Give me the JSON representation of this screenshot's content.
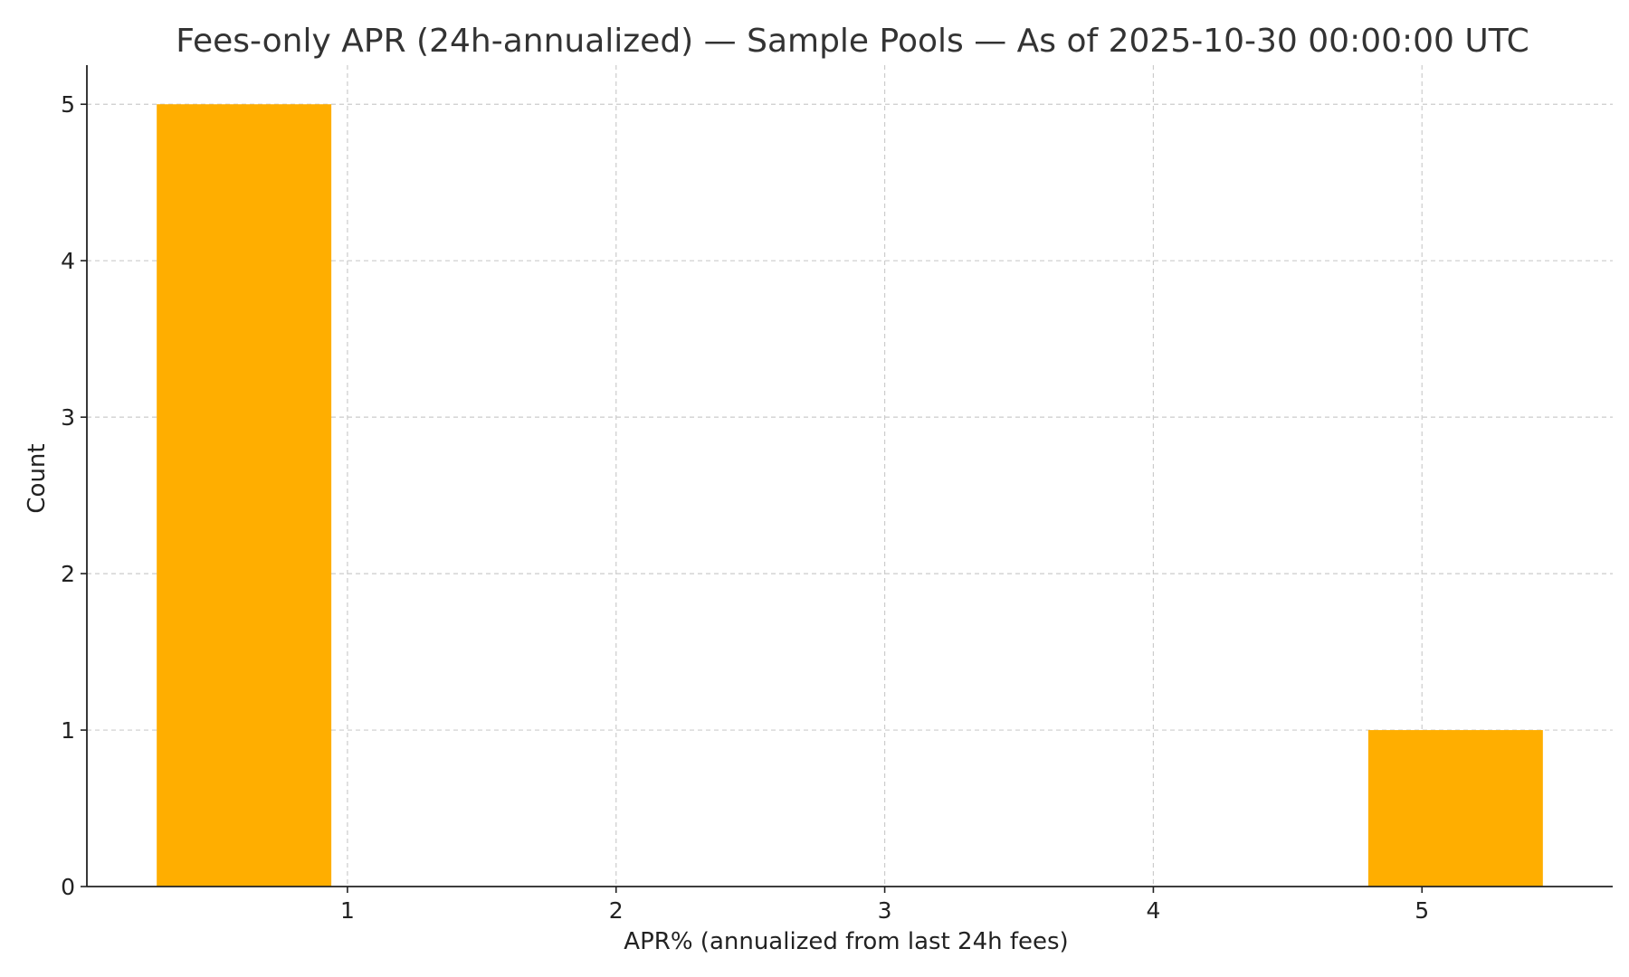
{
  "chart_data": {
    "type": "bar",
    "title": "Fees-only APR (24h-annualized) — Sample Pools — As of 2025-10-30 00:00:00 UTC",
    "xlabel": "APR% (annualized from last 24h fees)",
    "ylabel": "Count",
    "xlim": [
      0.03,
      5.71
    ],
    "ylim": [
      0,
      5.25
    ],
    "xticks": [
      1,
      2,
      3,
      4,
      5
    ],
    "yticks": [
      0,
      1,
      2,
      3,
      4,
      5
    ],
    "grid": true,
    "bar_color": "#ffae00",
    "bins": [
      {
        "x0": 0.29,
        "x1": 0.94,
        "count": 5
      },
      {
        "x0": 4.8,
        "x1": 5.45,
        "count": 1
      }
    ]
  }
}
